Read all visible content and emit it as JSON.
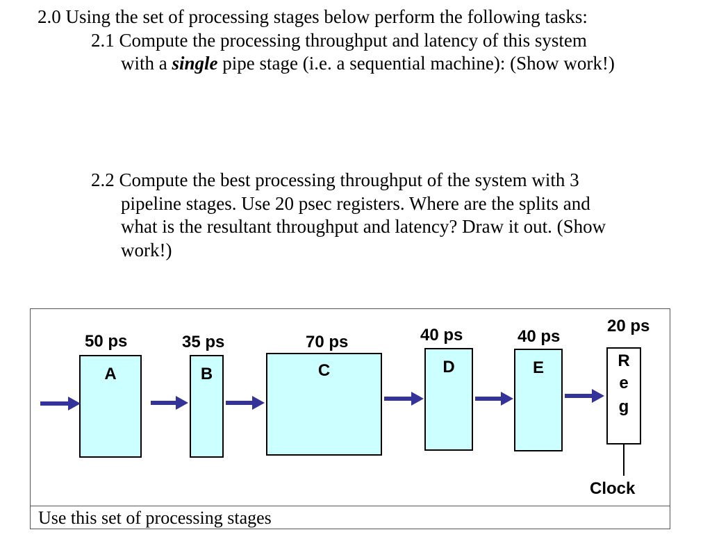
{
  "text": {
    "title": "2.0 Using the set of processing stages below perform the following tasks:",
    "task_21": {
      "line1": "2.1 Compute the processing throughput and latency of this system",
      "line2_pre": "with a ",
      "line2_emph": "single",
      "line2_post": " pipe stage (i.e. a sequential machine): (Show work!)"
    },
    "task_22": {
      "line1": "2.2 Compute the best processing throughput of the system with 3",
      "line2": "pipeline stages.  Use 20 psec registers.  Where are the splits and",
      "line3": "what is the resultant throughput and latency?  Draw it out. (Show",
      "line4": "work!)"
    }
  },
  "diagram": {
    "caption": "Use this set of processing stages",
    "stages": [
      {
        "name": "A",
        "delay": "50 ps"
      },
      {
        "name": "B",
        "delay": "35 ps"
      },
      {
        "name": "C",
        "delay": "70 ps"
      },
      {
        "name": "D",
        "delay": "40 ps"
      },
      {
        "name": "E",
        "delay": "40 ps"
      }
    ],
    "register": {
      "delay": "20 ps",
      "letters": [
        "R",
        "e",
        "g"
      ],
      "clock_label": "Clock"
    },
    "colors": {
      "stage_fill": "#ccffff",
      "arrow": "#33339a"
    }
  }
}
